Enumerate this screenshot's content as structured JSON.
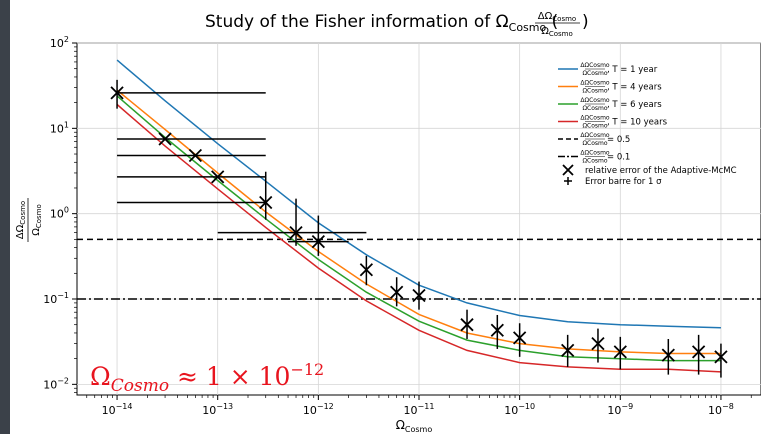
{
  "chart_data": {
    "type": "line",
    "title": "Study of the Fisher information of Ω",
    "title_sub": "Cosmo",
    "title_frac_num": "ΔΩ",
    "title_frac_num_sub": "Cosmo",
    "title_frac_den": "Ω",
    "title_frac_den_sub": "Cosmo",
    "xlabel": "Ω",
    "xlabel_sub": "Cosmo",
    "ylabel_num": "ΔΩ",
    "ylabel_num_sub": "Cosmo",
    "ylabel_den": "Ω",
    "ylabel_den_sub": "Cosmo",
    "x_scale": "log",
    "y_scale": "log",
    "xlim": [
      4e-15,
      2.5e-08
    ],
    "ylim": [
      0.0075,
      100
    ],
    "grid": true,
    "legend_position": "top-right",
    "x_ticks": [
      {
        "value": 1e-14,
        "base": "10",
        "exp": "−14"
      },
      {
        "value": 1e-13,
        "base": "10",
        "exp": "−13"
      },
      {
        "value": 1e-12,
        "base": "10",
        "exp": "−12"
      },
      {
        "value": 1e-11,
        "base": "10",
        "exp": "−11"
      },
      {
        "value": 1e-10,
        "base": "10",
        "exp": "−10"
      },
      {
        "value": 1e-09,
        "base": "10",
        "exp": "−9"
      },
      {
        "value": 1e-08,
        "base": "10",
        "exp": "−8"
      }
    ],
    "y_ticks": [
      {
        "value": 0.01,
        "base": "10",
        "exp": "−2"
      },
      {
        "value": 0.1,
        "base": "10",
        "exp": "−1"
      },
      {
        "value": 1,
        "base": "10",
        "exp": "0"
      },
      {
        "value": 10,
        "base": "10",
        "exp": "1"
      },
      {
        "value": 100,
        "base": "10",
        "exp": "2"
      }
    ],
    "series": [
      {
        "name": "T = 1 year",
        "color": "#1f77b4",
        "x": [
          1e-14,
          3e-14,
          1e-13,
          3e-13,
          1e-12,
          3e-12,
          1e-11,
          3e-11,
          1e-10,
          3e-10,
          1e-09,
          3e-09,
          1e-08
        ],
        "y": [
          63,
          21,
          6.6,
          2.4,
          0.78,
          0.33,
          0.145,
          0.09,
          0.064,
          0.054,
          0.05,
          0.048,
          0.046
        ]
      },
      {
        "name": "T = 4 years",
        "color": "#ff7f0e",
        "x": [
          1e-14,
          3e-14,
          1e-13,
          3e-13,
          1e-12,
          3e-12,
          1e-11,
          3e-11,
          1e-10,
          3e-10,
          1e-09,
          3e-09,
          1e-08
        ],
        "y": [
          28,
          9.7,
          3.0,
          1.05,
          0.36,
          0.15,
          0.066,
          0.04,
          0.03,
          0.026,
          0.024,
          0.023,
          0.023
        ]
      },
      {
        "name": "T = 6 years",
        "color": "#2ca02c",
        "x": [
          1e-14,
          3e-14,
          1e-13,
          3e-13,
          1e-12,
          3e-12,
          1e-11,
          3e-11,
          1e-10,
          3e-10,
          1e-09,
          3e-09,
          1e-08
        ],
        "y": [
          24,
          7.8,
          2.45,
          0.87,
          0.29,
          0.12,
          0.055,
          0.033,
          0.025,
          0.021,
          0.02,
          0.019,
          0.019
        ]
      },
      {
        "name": "T = 10 years",
        "color": "#d62728",
        "x": [
          1e-14,
          3e-14,
          1e-13,
          3e-13,
          1e-12,
          3e-12,
          1e-11,
          3e-11,
          1e-10,
          3e-10,
          1e-09,
          3e-09,
          1e-08
        ],
        "y": [
          19,
          6.2,
          1.95,
          0.69,
          0.23,
          0.095,
          0.043,
          0.025,
          0.018,
          0.016,
          0.015,
          0.015,
          0.014
        ]
      }
    ],
    "hlines": [
      {
        "label_value": "= 0.5",
        "value": 0.5,
        "style": "dashed",
        "color": "#000000"
      },
      {
        "label_value": "= 0.1",
        "value": 0.1,
        "style": "dashdot",
        "color": "#000000"
      }
    ],
    "points": {
      "name": "relative error of the Adaptive-McMC",
      "x": [
        1e-14,
        3e-14,
        6e-14,
        1e-13,
        3e-13,
        6e-13,
        1e-12,
        3e-12,
        6e-12,
        1e-11,
        3e-11,
        6e-11,
        1e-10,
        3e-10,
        6e-10,
        1e-09,
        3e-09,
        6e-09,
        1e-08
      ],
      "y": [
        26,
        7.5,
        4.8,
        2.7,
        1.35,
        0.6,
        0.47,
        0.22,
        0.12,
        0.11,
        0.05,
        0.043,
        0.035,
        0.025,
        0.03,
        0.024,
        0.022,
        0.024,
        0.021
      ],
      "y_lo": [
        17,
        7.3,
        4.7,
        2.65,
        0.85,
        0.42,
        0.32,
        0.145,
        0.082,
        0.075,
        0.034,
        0.026,
        0.021,
        0.016,
        0.018,
        0.015,
        0.013,
        0.013,
        0.012
      ],
      "y_hi": [
        37,
        7.7,
        4.9,
        2.8,
        3.1,
        1.5,
        0.95,
        0.32,
        0.18,
        0.16,
        0.075,
        0.065,
        0.052,
        0.038,
        0.045,
        0.036,
        0.034,
        0.038,
        0.03
      ],
      "x_lo": [
        1e-14,
        1e-14,
        1e-14,
        1e-14,
        1e-14,
        1e-13,
        5e-13,
        null,
        null,
        null,
        null,
        null,
        null,
        null,
        null,
        null,
        null,
        null,
        null
      ],
      "x_hi": [
        3e-13,
        3e-13,
        3e-13,
        3e-13,
        3e-13,
        3e-12,
        2e-12,
        null,
        null,
        null,
        null,
        null,
        null,
        null,
        null,
        null,
        null,
        null,
        null
      ]
    },
    "errorbar_legend": "Error barre for 1 σ",
    "annotation": {
      "text_main": "Ω",
      "text_sub": "Cosmo",
      "text_rest": " ≈ 1 × 10",
      "text_exp": "−12",
      "color": "#e8141e"
    }
  }
}
